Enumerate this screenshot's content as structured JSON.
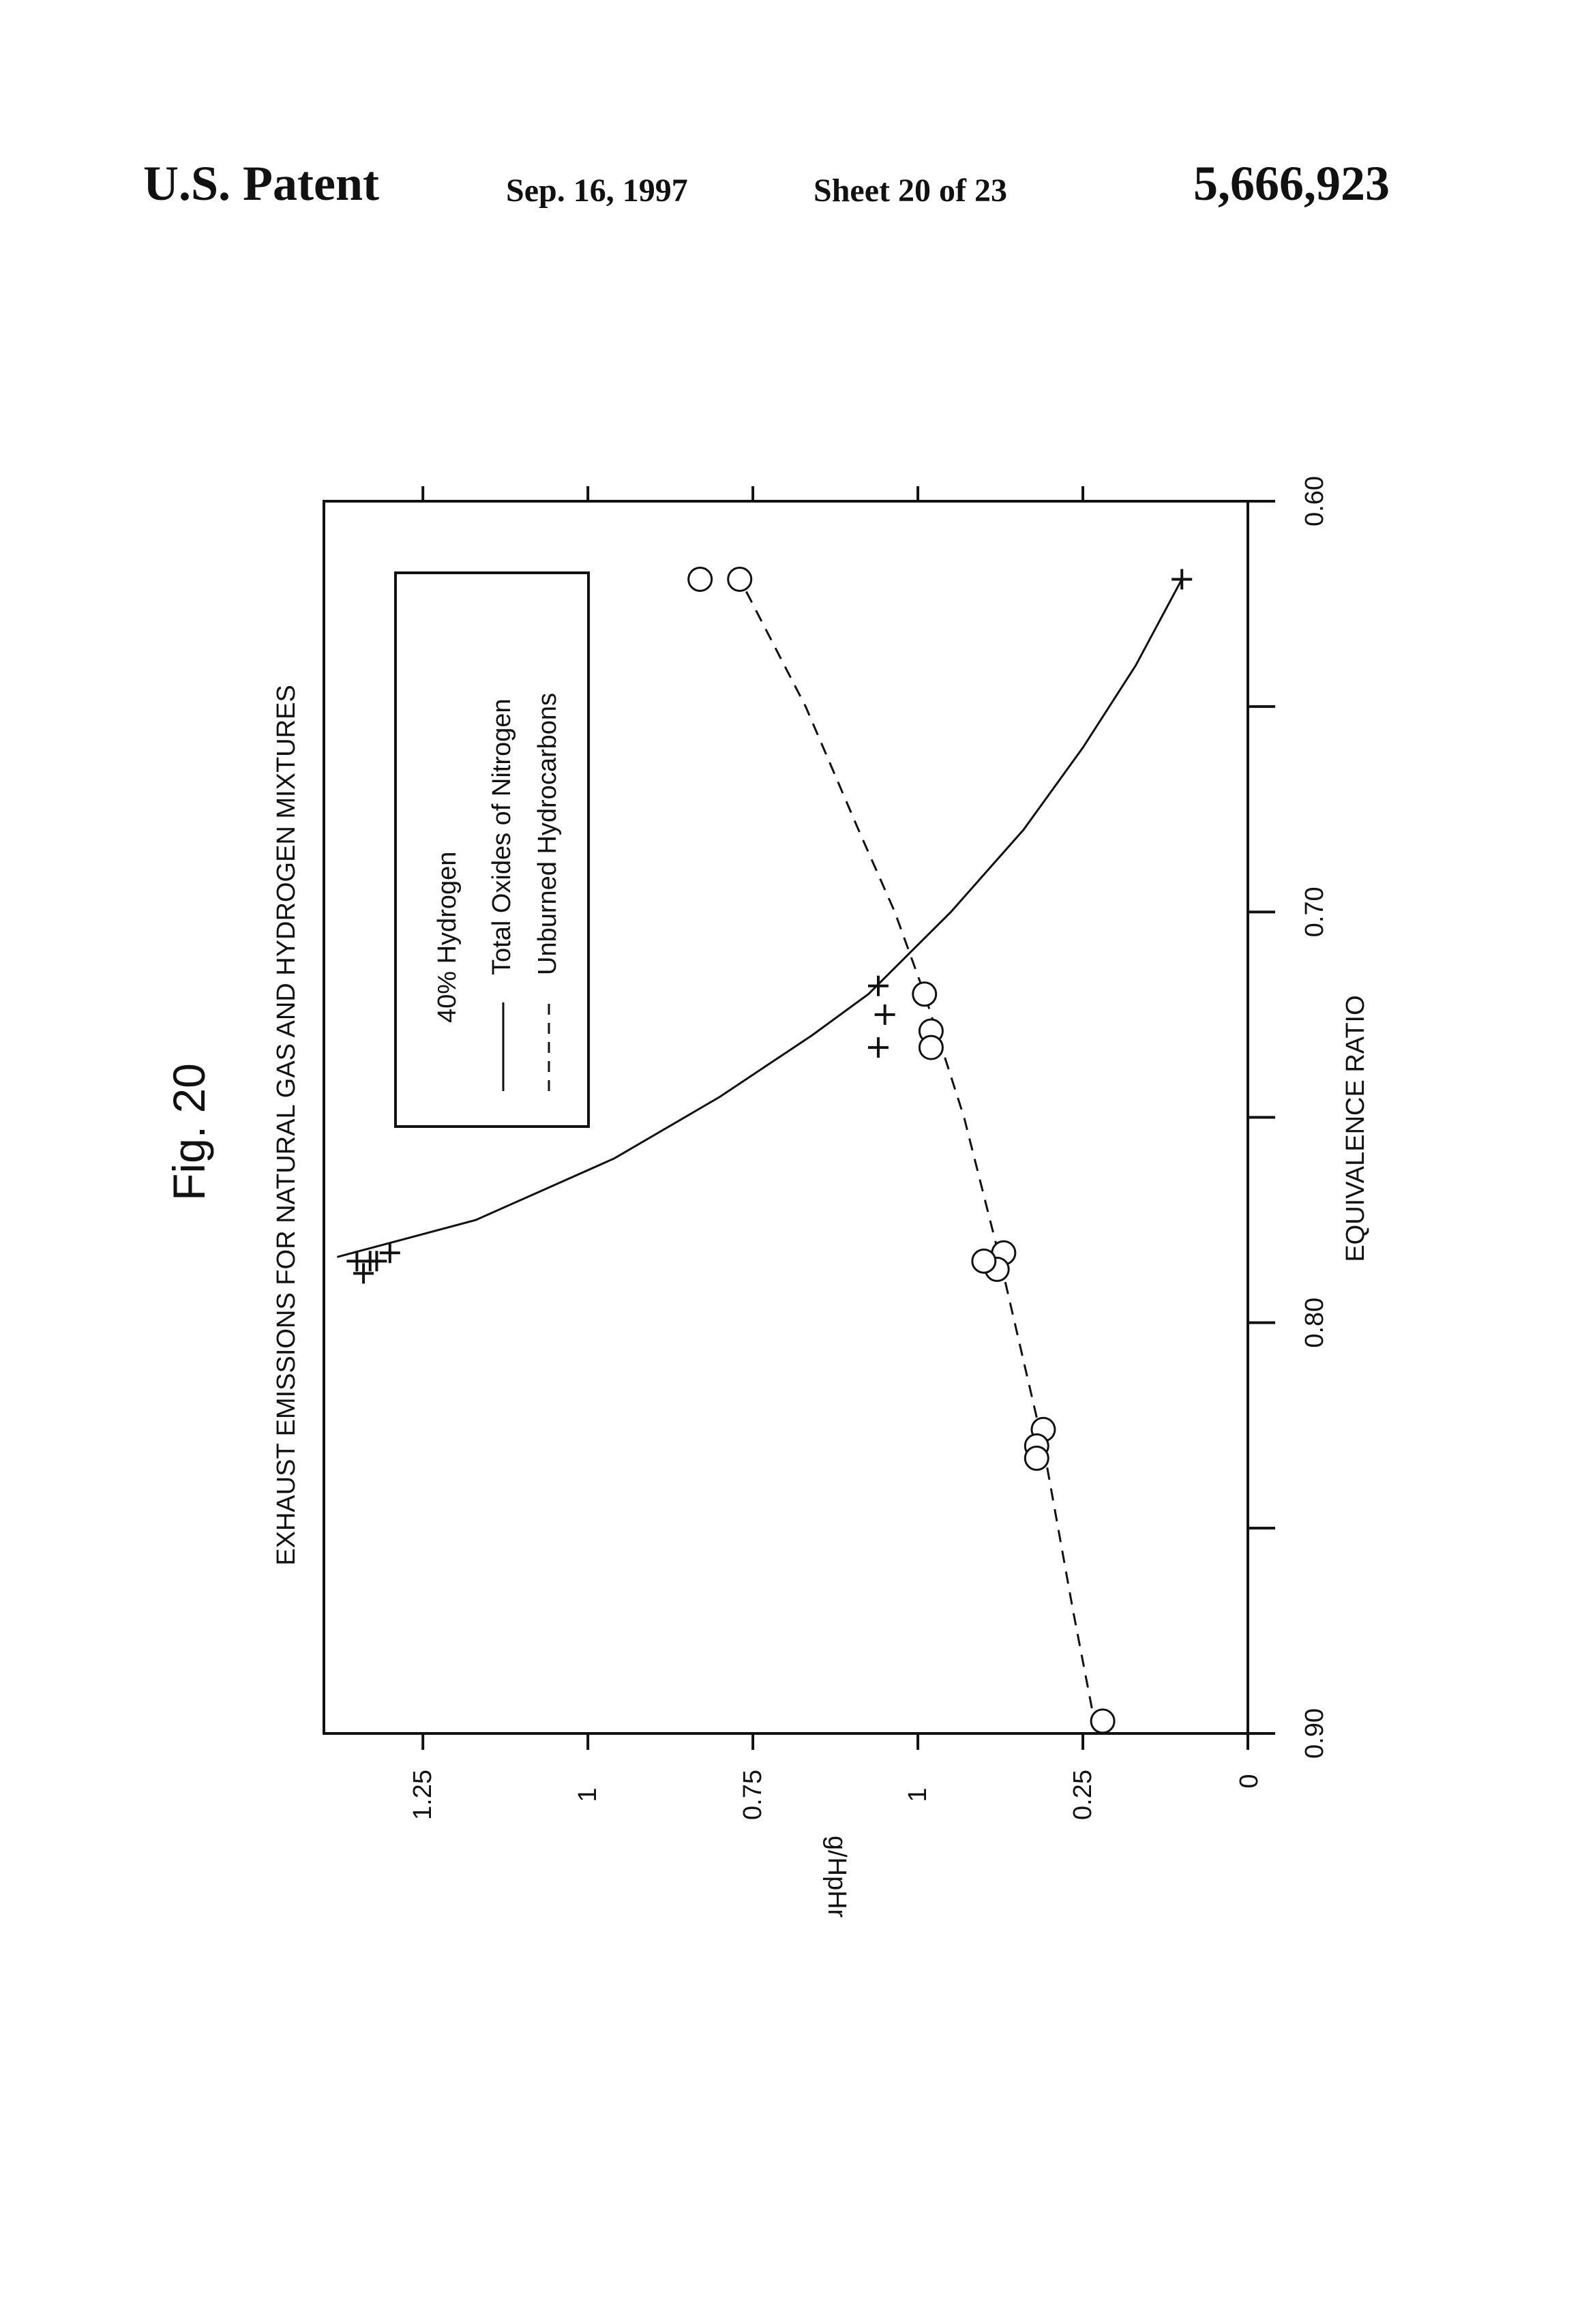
{
  "header": {
    "patent_label": "U.S. Patent",
    "date": "Sep. 16, 1997",
    "sheet": "Sheet 20 of 23",
    "patent_number": "5,666,923"
  },
  "figure_label": "Fig. 20",
  "chart_data": {
    "type": "scatter",
    "title": "EXHAUST EMISSIONS FOR NATURAL GAS AND HYDROGEN MIXTURES",
    "xlabel": "EQUIVALENCE RATIO",
    "ylabel": "g/HpHr",
    "xlim": [
      0.6,
      0.9
    ],
    "ylim": [
      0,
      1.4
    ],
    "x_ticks": [
      0.9,
      0.8,
      0.7,
      0.6
    ],
    "x_tick_labels": [
      "0.90",
      "0.80",
      "0.70",
      "0.60"
    ],
    "x_minor_ticks": [
      0.85,
      0.75,
      0.65
    ],
    "y_ticks": [
      0.25,
      0.5,
      0.75,
      1.0,
      1.25
    ],
    "y_tick_labels": [
      "0.25",
      "1",
      "0.75",
      "1",
      "1.25"
    ],
    "y_zero_label": "0",
    "legend": {
      "title": "40% Hydrogen",
      "placement": "top-left",
      "entries": [
        "Total Oxides of Nitrogen",
        "Unburned Hydrocarbons"
      ]
    },
    "series": [
      {
        "name": "Total Oxides of Nitrogen",
        "marker": "+",
        "line": "solid",
        "points": [
          [
            0.785,
            1.32
          ],
          [
            0.785,
            1.33
          ],
          [
            0.785,
            1.35
          ],
          [
            0.788,
            1.34
          ],
          [
            0.783,
            1.3
          ],
          [
            0.718,
            0.56
          ],
          [
            0.725,
            0.55
          ],
          [
            0.733,
            0.56
          ],
          [
            0.619,
            0.1
          ]
        ],
        "fit": [
          [
            0.784,
            1.38
          ],
          [
            0.775,
            1.17
          ],
          [
            0.76,
            0.96
          ],
          [
            0.745,
            0.8
          ],
          [
            0.73,
            0.66
          ],
          [
            0.72,
            0.575
          ],
          [
            0.7,
            0.45
          ],
          [
            0.68,
            0.34
          ],
          [
            0.66,
            0.25
          ],
          [
            0.64,
            0.17
          ],
          [
            0.619,
            0.1
          ]
        ]
      },
      {
        "name": "Unburned Hydrocarbons",
        "marker": "o",
        "line": "dashed",
        "points": [
          [
            0.619,
            0.77
          ],
          [
            0.619,
            0.83
          ],
          [
            0.72,
            0.49
          ],
          [
            0.729,
            0.48
          ],
          [
            0.733,
            0.48
          ],
          [
            0.783,
            0.37
          ],
          [
            0.787,
            0.38
          ],
          [
            0.785,
            0.4
          ],
          [
            0.826,
            0.31
          ],
          [
            0.83,
            0.32
          ],
          [
            0.833,
            0.32
          ],
          [
            0.897,
            0.22
          ]
        ],
        "fit": [
          [
            0.622,
            0.76
          ],
          [
            0.65,
            0.67
          ],
          [
            0.68,
            0.59
          ],
          [
            0.7,
            0.535
          ],
          [
            0.72,
            0.49
          ],
          [
            0.75,
            0.43
          ],
          [
            0.785,
            0.375
          ],
          [
            0.83,
            0.31
          ],
          [
            0.87,
            0.265
          ],
          [
            0.895,
            0.235
          ]
        ]
      }
    ]
  }
}
